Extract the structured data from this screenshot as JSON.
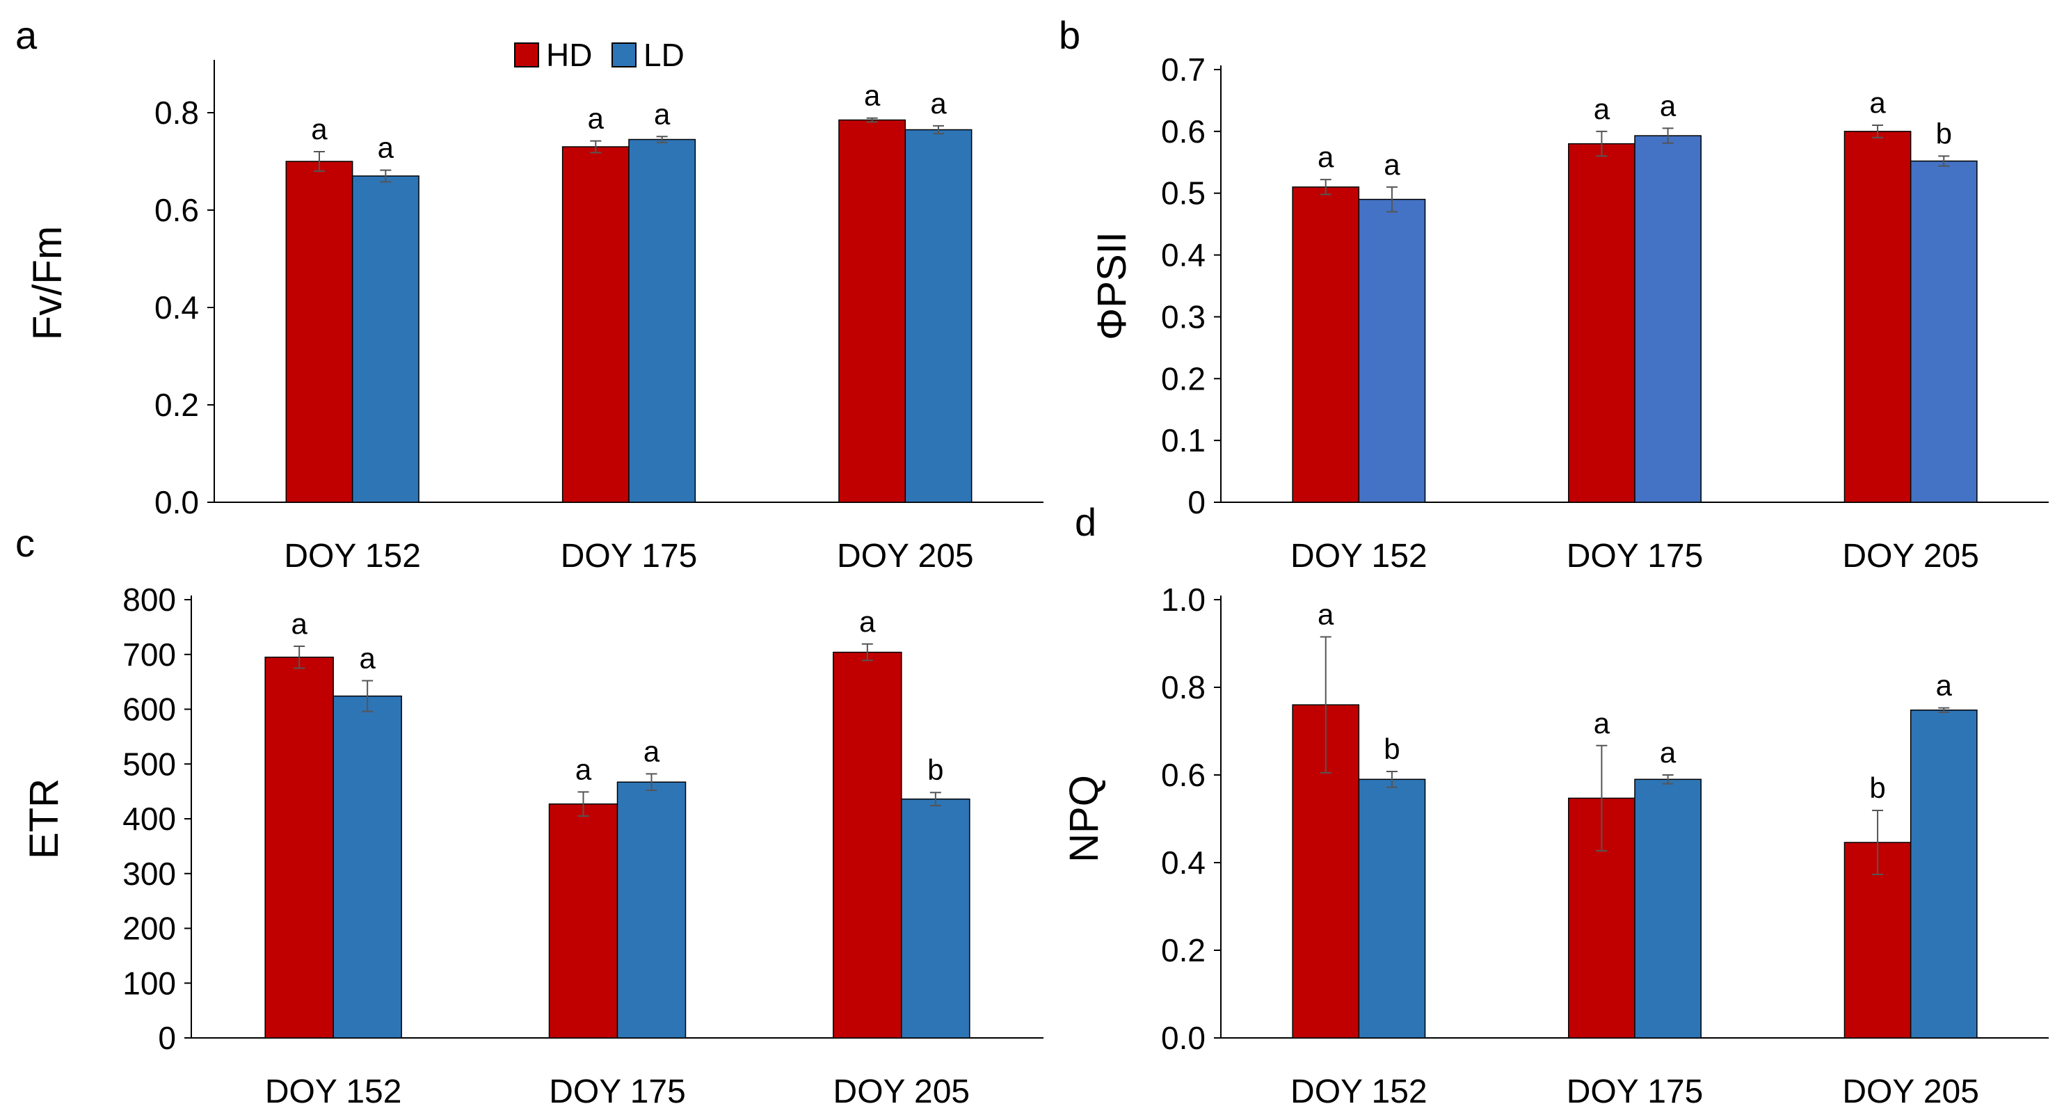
{
  "legend": {
    "entries": [
      {
        "name": "HD",
        "color": "#c00000"
      },
      {
        "name": "LD",
        "color": "#2e75b6"
      }
    ]
  },
  "chart_data": [
    {
      "panel": "a",
      "type": "bar",
      "ylabel": "Fv/Fm",
      "ylim": [
        0,
        0.9
      ],
      "yticks": [
        0,
        0.2,
        0.4,
        0.6,
        0.8
      ],
      "ytick_labels": [
        "0.0",
        "0.2",
        "0.4",
        "0.6",
        "0.8"
      ],
      "categories": [
        "DOY 152",
        "DOY 175",
        "DOY 205"
      ],
      "series": [
        {
          "name": "HD",
          "color": "#c00000",
          "values": [
            0.7,
            0.73,
            0.785
          ],
          "errors": [
            0.02,
            0.012,
            0.004
          ],
          "sig": [
            "a",
            "a",
            "a"
          ]
        },
        {
          "name": "LD",
          "color": "#2e75b6",
          "values": [
            0.67,
            0.745,
            0.765
          ],
          "errors": [
            0.012,
            0.006,
            0.008
          ],
          "sig": [
            "a",
            "a",
            "a"
          ]
        }
      ]
    },
    {
      "panel": "b",
      "type": "bar",
      "ylabel": "ΦPSII",
      "ylim": [
        0,
        0.7
      ],
      "yticks": [
        0,
        0.1,
        0.2,
        0.3,
        0.4,
        0.5,
        0.6,
        0.7
      ],
      "ytick_labels": [
        "0",
        "0.1",
        "0.2",
        "0.3",
        "0.4",
        "0.5",
        "0.6",
        "0.7"
      ],
      "categories": [
        "DOY 152",
        "DOY 175",
        "DOY 205"
      ],
      "series": [
        {
          "name": "HD",
          "color": "#c00000",
          "values": [
            0.51,
            0.58,
            0.6
          ],
          "errors": [
            0.012,
            0.02,
            0.01
          ],
          "sig": [
            "a",
            "a",
            "a"
          ]
        },
        {
          "name": "LD",
          "color": "#4472c4",
          "values": [
            0.49,
            0.593,
            0.552
          ],
          "errors": [
            0.02,
            0.012,
            0.008
          ],
          "sig": [
            "a",
            "a",
            "b"
          ]
        }
      ]
    },
    {
      "panel": "c",
      "type": "bar",
      "ylabel": "ETR",
      "ylim": [
        0,
        800
      ],
      "yticks": [
        0,
        100,
        200,
        300,
        400,
        500,
        600,
        700,
        800
      ],
      "ytick_labels": [
        "0",
        "100",
        "200",
        "300",
        "400",
        "500",
        "600",
        "700",
        "800"
      ],
      "categories": [
        "DOY 152",
        "DOY 175",
        "DOY 205"
      ],
      "series": [
        {
          "name": "HD",
          "color": "#c00000",
          "values": [
            695,
            427,
            704
          ],
          "errors": [
            20,
            22,
            15
          ],
          "sig": [
            "a",
            "a",
            "a"
          ]
        },
        {
          "name": "LD",
          "color": "#2e75b6",
          "values": [
            624,
            467,
            436
          ],
          "errors": [
            28,
            15,
            12
          ],
          "sig": [
            "a",
            "a",
            "b"
          ]
        }
      ]
    },
    {
      "panel": "d",
      "type": "bar",
      "ylabel": "NPQ",
      "ylim": [
        0,
        1.0
      ],
      "yticks": [
        0,
        0.2,
        0.4,
        0.6,
        0.8,
        1.0
      ],
      "ytick_labels": [
        "0.0",
        "0.2",
        "0.4",
        "0.6",
        "0.8",
        "1.0"
      ],
      "categories": [
        "DOY 152",
        "DOY 175",
        "DOY 205"
      ],
      "series": [
        {
          "name": "HD",
          "color": "#c00000",
          "values": [
            0.76,
            0.547,
            0.446
          ],
          "errors": [
            0.155,
            0.12,
            0.073
          ],
          "sig": [
            "a",
            "a",
            "b"
          ]
        },
        {
          "name": "LD",
          "color": "#2e75b6",
          "values": [
            0.59,
            0.59,
            0.748
          ],
          "errors": [
            0.018,
            0.01,
            0.005
          ],
          "sig": [
            "b",
            "a",
            "a"
          ]
        }
      ]
    }
  ]
}
